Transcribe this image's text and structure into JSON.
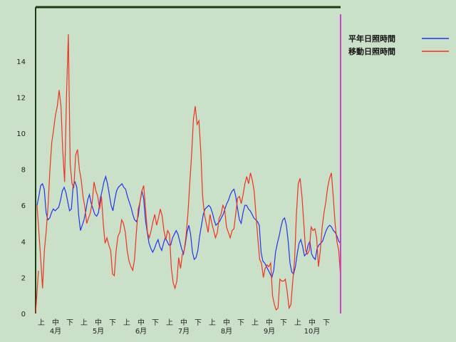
{
  "chart_data": {
    "type": "line",
    "ylim": [
      0,
      17
    ],
    "y_ticks": [
      0,
      2,
      4,
      6,
      8,
      10,
      12,
      14
    ],
    "x_period_labels": [
      "上",
      "中",
      "下",
      "上",
      "中",
      "下",
      "上",
      "中",
      "下",
      "上",
      "中",
      "下",
      "上",
      "中",
      "下",
      "上",
      "中",
      "下",
      "上",
      "中",
      "下"
    ],
    "x_month_labels": [
      "4月",
      "5月",
      "6月",
      "7月",
      "8月",
      "9月",
      "10月"
    ],
    "grid": false,
    "legend_position": "top-right",
    "colors": {
      "normal": "#2233ee",
      "moving": "#ee3322",
      "marker": "#cc44cc",
      "frame": "#1a3d14"
    },
    "series": [
      {
        "name": "平年日照時間",
        "values": [
          6.0,
          6.5,
          7.1,
          7.2,
          6.9,
          5.6,
          5.2,
          5.3,
          5.6,
          5.8,
          5.7,
          5.8,
          5.9,
          6.3,
          6.8,
          7.0,
          6.7,
          6.2,
          5.7,
          5.8,
          7.1,
          7.3,
          7.0,
          5.5,
          4.6,
          4.9,
          5.2,
          5.7,
          6.3,
          6.6,
          6.1,
          5.8,
          5.5,
          5.4,
          5.6,
          6.4,
          6.8,
          7.3,
          7.6,
          7.2,
          6.6,
          6.0,
          5.7,
          6.3,
          6.8,
          7.0,
          7.1,
          7.2,
          7.0,
          6.9,
          6.5,
          6.2,
          5.9,
          5.5,
          5.2,
          5.1,
          5.4,
          6.2,
          6.8,
          6.4,
          5.2,
          4.5,
          3.9,
          3.6,
          3.4,
          3.6,
          3.9,
          4.1,
          3.7,
          3.5,
          3.9,
          4.2,
          4.0,
          3.8,
          3.8,
          4.2,
          4.4,
          4.6,
          4.4,
          4.0,
          3.6,
          3.3,
          3.8,
          4.5,
          4.9,
          4.4,
          3.4,
          3.0,
          3.1,
          3.5,
          4.3,
          4.9,
          5.5,
          5.8,
          5.9,
          6.0,
          5.9,
          5.6,
          5.2,
          4.9,
          5.0,
          5.1,
          5.3,
          5.5,
          5.8,
          6.1,
          6.3,
          6.6,
          6.8,
          6.9,
          6.5,
          5.8,
          5.2,
          5.0,
          5.6,
          6.0,
          6.0,
          5.8,
          5.7,
          5.5,
          5.3,
          5.2,
          5.1,
          4.9,
          3.4,
          2.9,
          2.8,
          2.6,
          2.4,
          2.2,
          2.0,
          2.4,
          3.4,
          3.9,
          4.3,
          4.8,
          5.2,
          5.3,
          4.9,
          4.0,
          2.8,
          2.3,
          2.2,
          2.6,
          3.3,
          3.9,
          4.1,
          3.7,
          3.2,
          3.3,
          3.8,
          4.0,
          3.3,
          3.1,
          3.0,
          3.6,
          3.8,
          3.9,
          4.0,
          4.3,
          4.6,
          4.8,
          4.9,
          4.8,
          4.6,
          4.5,
          4.3,
          4.0,
          3.9
        ]
      },
      {
        "name": "移動日照時間",
        "values": [
          6.0,
          4.5,
          3.0,
          1.4,
          3.5,
          4.6,
          6.0,
          8.0,
          9.5,
          10.2,
          11.0,
          11.5,
          12.4,
          11.5,
          9.0,
          7.3,
          12.0,
          15.5,
          8.3,
          7.2,
          7.0,
          8.8,
          9.1,
          8.0,
          7.4,
          6.5,
          5.9,
          5.0,
          5.3,
          5.6,
          6.2,
          7.3,
          6.8,
          6.5,
          5.8,
          6.5,
          5.0,
          3.9,
          4.2,
          3.8,
          3.5,
          2.2,
          2.1,
          3.5,
          4.3,
          4.5,
          5.2,
          5.0,
          4.5,
          3.5,
          2.9,
          2.6,
          2.4,
          3.0,
          4.5,
          5.8,
          6.2,
          6.8,
          7.1,
          5.8,
          4.5,
          4.2,
          4.6,
          5.1,
          5.5,
          4.9,
          5.3,
          5.8,
          5.4,
          4.6,
          4.1,
          4.6,
          4.4,
          2.5,
          1.7,
          1.4,
          1.8,
          3.1,
          2.5,
          3.3,
          3.5,
          4.3,
          5.5,
          7.2,
          8.8,
          10.8,
          11.5,
          10.5,
          10.7,
          9.0,
          6.5,
          5.5,
          5.0,
          4.5,
          5.5,
          5.0,
          4.6,
          4.2,
          4.5,
          5.3,
          5.5,
          6.0,
          5.8,
          4.8,
          4.5,
          4.2,
          4.6,
          4.7,
          5.5,
          6.4,
          6.5,
          6.1,
          6.6,
          7.2,
          7.6,
          7.2,
          7.8,
          7.4,
          6.8,
          5.5,
          4.2,
          3.0,
          2.8,
          2.0,
          2.5,
          2.7,
          2.6,
          2.8,
          1.0,
          0.5,
          0.2,
          0.3,
          1.9,
          1.8,
          1.8,
          1.9,
          1.2,
          0.3,
          0.5,
          1.8,
          3.0,
          5.5,
          7.2,
          7.5,
          6.5,
          5.0,
          3.5,
          3.3,
          3.5,
          4.8,
          4.6,
          4.7,
          4.2,
          2.6,
          3.5,
          4.8,
          5.6,
          6.2,
          7.0,
          7.5,
          7.8,
          6.5,
          5.0,
          4.0,
          3.5,
          2.0
        ]
      }
    ]
  }
}
